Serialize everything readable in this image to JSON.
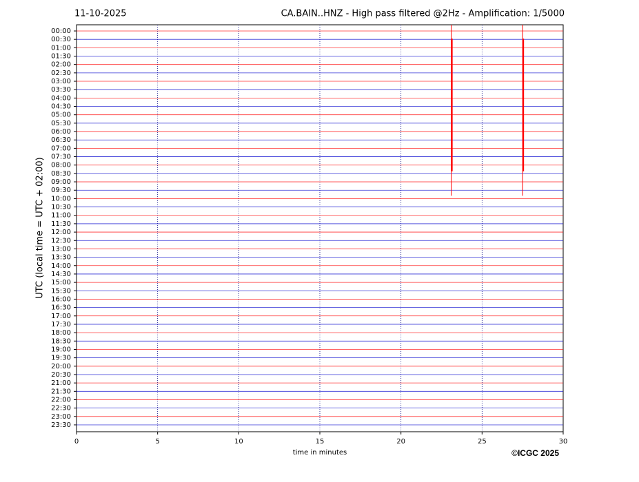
{
  "chart_data": {
    "type": "helicorder",
    "date": "11-10-2025",
    "title": "CA.BAIN..HNZ - High pass filtered @2Hz - Amplification: 1/5000",
    "y_label": "UTC (local time = UTC + 02:00)",
    "x_label": "time in minutes",
    "copyright": "©ICGC 2025",
    "categories": [
      "00:00",
      "00:30",
      "01:00",
      "01:30",
      "02:00",
      "02:30",
      "03:00",
      "03:30",
      "04:00",
      "04:30",
      "05:00",
      "05:30",
      "06:00",
      "06:30",
      "07:00",
      "07:30",
      "08:00",
      "08:30",
      "09:00",
      "09:30",
      "10:00",
      "10:30",
      "11:00",
      "11:30",
      "12:00",
      "12:30",
      "13:00",
      "13:30",
      "14:00",
      "14:30",
      "15:00",
      "15:30",
      "16:00",
      "16:30",
      "17:00",
      "17:30",
      "18:00",
      "18:30",
      "19:00",
      "19:30",
      "20:00",
      "20:30",
      "21:00",
      "21:30",
      "22:00",
      "22:30",
      "23:00",
      "23:30"
    ],
    "trace_colors": [
      "#ff0000",
      "#0000cc"
    ],
    "xlim": [
      0,
      30
    ],
    "xticks": [
      0,
      5,
      10,
      15,
      20,
      25,
      30
    ],
    "grid": true,
    "events": [
      {
        "x": 23.1,
        "color": "#ff0000"
      },
      {
        "x": 27.5,
        "color": "#ff0000"
      }
    ]
  }
}
